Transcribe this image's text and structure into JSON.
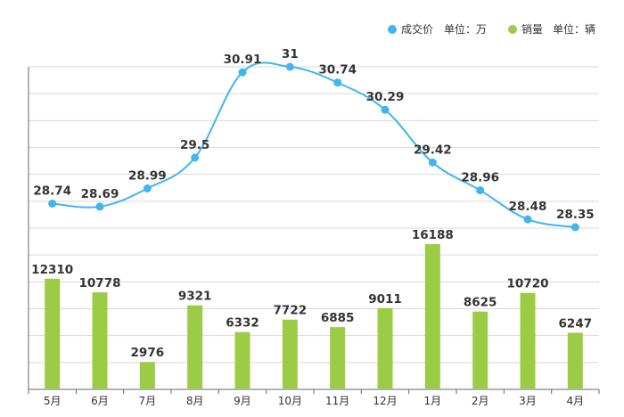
{
  "chart_data": {
    "type": "bar+line",
    "categories": [
      "5月",
      "6月",
      "7月",
      "8月",
      "9月",
      "10月",
      "11月",
      "12月",
      "1月",
      "2月",
      "3月",
      "4月"
    ],
    "series": [
      {
        "name": "成交价",
        "unit_label": "单位：万",
        "type": "line",
        "color": "#3fb6ef",
        "values": [
          28.74,
          28.69,
          28.99,
          29.5,
          30.91,
          31,
          30.74,
          30.29,
          29.42,
          28.96,
          28.48,
          28.35
        ],
        "labels": [
          "28.74",
          "28.69",
          "28.99",
          "29.5",
          "30.91",
          "31",
          "30.74",
          "30.29",
          "29.42",
          "28.96",
          "28.48",
          "28.35"
        ]
      },
      {
        "name": "销量",
        "unit_label": "单位：辆",
        "type": "bar",
        "color": "#9ccc45",
        "values": [
          12310,
          10778,
          2976,
          9321,
          6332,
          7722,
          6885,
          9011,
          16188,
          8625,
          10720,
          6247
        ],
        "labels": [
          "12310",
          "10778",
          "2976",
          "9321",
          "6332",
          "7722",
          "6885",
          "9011",
          "16188",
          "8625",
          "10720",
          "6247"
        ]
      }
    ],
    "legend_position": "top-right",
    "grid": true
  }
}
